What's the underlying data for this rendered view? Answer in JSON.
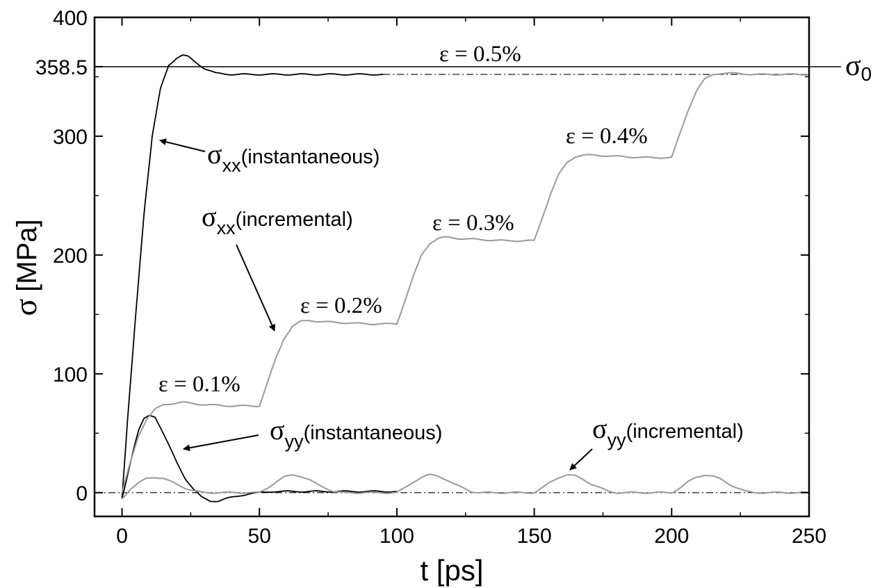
{
  "chart_data": {
    "type": "line",
    "xlabel": "t [ps]",
    "ylabel_symbol": "σ",
    "ylabel_unit": "[MPa]",
    "xlim": [
      -10,
      250
    ],
    "ylim": [
      -20,
      400
    ],
    "x_ticks": [
      0,
      50,
      100,
      150,
      200,
      250
    ],
    "y_ticks": [
      0,
      100,
      200,
      300,
      400
    ],
    "y_extra_tick": 358.5,
    "y_extra_tick_label": "358.5",
    "grid": false,
    "reference_lines": [
      {
        "name": "σ0",
        "y": 358.5,
        "style": "solid",
        "label_main": "σ",
        "label_sub": "0"
      },
      {
        "y": 0,
        "style": "dash-dot"
      },
      {
        "y": 352,
        "style": "dash-dot",
        "x_from": 95,
        "x_to": 250
      }
    ],
    "series": [
      {
        "name": "σxx(instantaneous)",
        "color": "#000000",
        "x": [
          0,
          2,
          5,
          8,
          11,
          14,
          17,
          20,
          22,
          24,
          27,
          30,
          34,
          40,
          50,
          60,
          70,
          80,
          95
        ],
        "y": [
          -5,
          60,
          150,
          235,
          300,
          340,
          360,
          366,
          368,
          367,
          362,
          357,
          353,
          352,
          352,
          352,
          352,
          352,
          352
        ]
      },
      {
        "name": "σyy(instantaneous)",
        "color": "#000000",
        "x": [
          0,
          2,
          4,
          6,
          8,
          10,
          12,
          14,
          17,
          20,
          23,
          26,
          29,
          32,
          35,
          38,
          42,
          46,
          50,
          55,
          60,
          70,
          80,
          90,
          100
        ],
        "y": [
          -5,
          15,
          35,
          52,
          62,
          65,
          64,
          55,
          40,
          25,
          12,
          3,
          -4,
          -7,
          -7,
          -5,
          -3,
          -1,
          0,
          1,
          1,
          1,
          1,
          1,
          1
        ]
      },
      {
        "name": "σxx(incremental)",
        "color": "#999999",
        "x": [
          0,
          3,
          6,
          9,
          12,
          15,
          18,
          22,
          30,
          40,
          50,
          53,
          56,
          59,
          62,
          65,
          68,
          72,
          80,
          90,
          100,
          103,
          106,
          109,
          112,
          115,
          118,
          122,
          130,
          140,
          150,
          153,
          156,
          159,
          162,
          165,
          168,
          172,
          180,
          190,
          200,
          203,
          206,
          209,
          212,
          215,
          218,
          222,
          230,
          240,
          250
        ],
        "y": [
          0,
          25,
          48,
          62,
          70,
          74,
          75,
          76,
          74,
          73,
          73,
          93,
          113,
          130,
          140,
          144,
          145,
          144,
          143,
          142,
          142,
          162,
          182,
          200,
          210,
          214,
          215,
          214,
          213,
          212,
          212,
          232,
          252,
          268,
          278,
          283,
          284,
          284,
          283,
          282,
          282,
          302,
          322,
          338,
          348,
          352,
          353,
          353,
          352,
          352,
          352
        ]
      },
      {
        "name": "σyy(incremental)",
        "color": "#999999",
        "x": [
          0,
          3,
          6,
          9,
          12,
          15,
          18,
          21,
          24,
          27,
          30,
          35,
          40,
          45,
          50,
          53,
          56,
          59,
          62,
          65,
          68,
          71,
          74,
          77,
          80,
          85,
          90,
          95,
          100,
          103,
          106,
          109,
          112,
          115,
          118,
          121,
          124,
          127,
          130,
          135,
          140,
          145,
          150,
          153,
          156,
          159,
          162,
          165,
          168,
          171,
          174,
          177,
          180,
          185,
          190,
          195,
          200,
          203,
          206,
          209,
          212,
          215,
          218,
          221,
          224,
          227,
          230,
          235,
          240,
          245,
          250
        ],
        "y": [
          -5,
          3,
          8,
          12,
          13,
          12,
          9,
          6,
          3,
          1,
          0,
          0,
          0,
          0,
          0,
          4,
          9,
          13,
          15,
          14,
          11,
          7,
          4,
          1,
          0,
          0,
          0,
          0,
          0,
          4,
          9,
          13,
          15,
          14,
          11,
          7,
          4,
          1,
          0,
          0,
          0,
          0,
          0,
          4,
          9,
          13,
          15,
          14,
          11,
          7,
          4,
          1,
          0,
          0,
          0,
          0,
          0,
          4,
          9,
          13,
          15,
          14,
          11,
          7,
          4,
          1,
          0,
          0,
          0,
          0,
          0
        ]
      }
    ],
    "annotations": {
      "sxx_inst": {
        "main": "σ",
        "sub": "xx",
        "rest": "(instantaneous)"
      },
      "sxx_inc": {
        "main": "σ",
        "sub": "xx",
        "rest": "(incremental)"
      },
      "syy_inst": {
        "main": "σ",
        "sub": "yy",
        "rest": "(instantaneous)"
      },
      "syy_inc": {
        "main": "σ",
        "sub": "yy",
        "rest": "(incremental)"
      },
      "eps": [
        "ε = 0.1%",
        "ε = 0.2%",
        "ε = 0.3%",
        "ε = 0.4%",
        "ε = 0.5%"
      ]
    }
  }
}
